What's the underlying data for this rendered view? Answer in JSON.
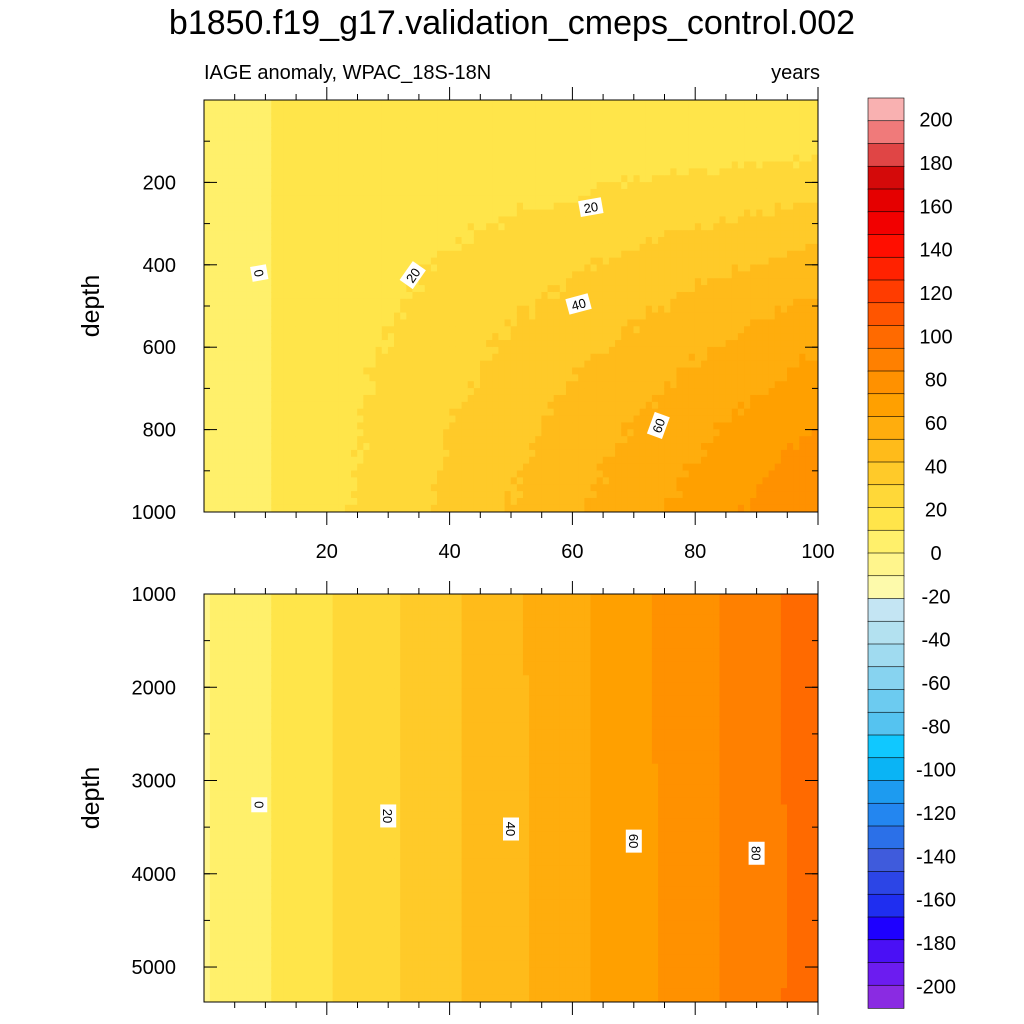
{
  "title": "b1850.f19_g17.validation_cmeps_control.002",
  "subtitle_left": "IAGE anomaly, WPAC_18S-18N",
  "subtitle_right": "years",
  "colors": {
    "levels_low_to_high": [
      "#8a2be2",
      "#6c1cf0",
      "#4a10f5",
      "#1e00ff",
      "#1f2ef0",
      "#2c45e6",
      "#3f5bdc",
      "#2b70e8",
      "#2386f0",
      "#1d9bf0",
      "#0ab4f5",
      "#10c8ff",
      "#55c3f0",
      "#6ccbf0",
      "#87d3f0",
      "#a0dbf0",
      "#b3e1f0",
      "#c4e5f3",
      "#fdfaab",
      "#fff58c",
      "#fff06b",
      "#ffe54a",
      "#ffd838",
      "#ffca29",
      "#ffbb1a",
      "#ffad0d",
      "#ffa000",
      "#ff9100",
      "#ff8000",
      "#ff6a00",
      "#ff5500",
      "#ff3c00",
      "#ff2200",
      "#ff0e00",
      "#f20000",
      "#e50000",
      "#d40a0a",
      "#e04545",
      "#f07a7a",
      "#f9b1b1"
    ]
  },
  "chart_data": [
    {
      "type": "heatmap",
      "panel": "upper",
      "xlabel": "",
      "ylabel": "depth",
      "x_ticks": [
        20,
        40,
        60,
        80,
        100
      ],
      "y_ticks": [
        200,
        400,
        600,
        800,
        1000
      ],
      "xlim": [
        0,
        100
      ],
      "ylim": [
        0,
        1000
      ],
      "y_reversed": true,
      "contour_labels": [
        {
          "text": "0",
          "x": 9,
          "y": 420,
          "angle": 80
        },
        {
          "text": "20",
          "x": 34,
          "y": 425,
          "angle": -55
        },
        {
          "text": "20",
          "x": 63,
          "y": 260,
          "angle": -10
        },
        {
          "text": "40",
          "x": 61,
          "y": 495,
          "angle": -15
        },
        {
          "text": "60",
          "x": 74,
          "y": 790,
          "angle": -70
        }
      ]
    },
    {
      "type": "heatmap",
      "panel": "lower",
      "xlabel": "",
      "ylabel": "depth",
      "x_ticks": [],
      "y_ticks": [
        1000,
        2000,
        3000,
        4000,
        5000
      ],
      "xlim": [
        0,
        100
      ],
      "ylim": [
        1000,
        5375
      ],
      "y_reversed": true,
      "contour_labels": [
        {
          "text": "0",
          "x": 9,
          "y": 3260,
          "angle": 90
        },
        {
          "text": "20",
          "x": 30,
          "y": 3380,
          "angle": 90
        },
        {
          "text": "40",
          "x": 50,
          "y": 3520,
          "angle": 90
        },
        {
          "text": "60",
          "x": 70,
          "y": 3650,
          "angle": 90
        },
        {
          "text": "80",
          "x": 90,
          "y": 3780,
          "angle": 90
        }
      ]
    },
    {
      "type": "colorbar",
      "range": [
        -210,
        210
      ],
      "step": 10,
      "tick_labels": [
        "200",
        "180",
        "160",
        "140",
        "120",
        "100",
        "80",
        "60",
        "40",
        "20",
        "0",
        "-20",
        "-40",
        "-60",
        "-80",
        "-100",
        "-120",
        "-140",
        "-160",
        "-180",
        "-200"
      ]
    }
  ]
}
